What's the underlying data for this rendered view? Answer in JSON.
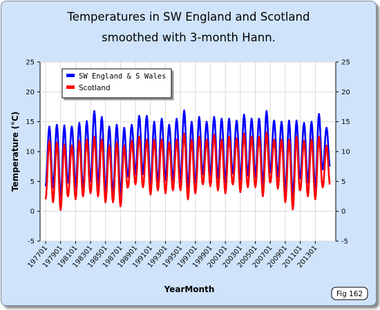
{
  "chart_data": {
    "type": "line",
    "title_lines": [
      "Temperatures in SW England and Scotland",
      "smoothed with 3-month Hann."
    ],
    "xlabel": "YearMonth",
    "ylabel": "Temperature (°C)",
    "ylim": [
      -5,
      25
    ],
    "y_ticks": [
      -5,
      0,
      5,
      10,
      15,
      20,
      25
    ],
    "y_ticks_right": [
      -5,
      0,
      5,
      10,
      15,
      20,
      25
    ],
    "x_tick_labels": [
      "197701",
      "197901",
      "198101",
      "198301",
      "198501",
      "198701",
      "198901",
      "199101",
      "199301",
      "199501",
      "199701",
      "199901",
      "200101",
      "200301",
      "200501",
      "200701",
      "200901",
      "201101",
      "201301"
    ],
    "grid": true,
    "legend_position": "top-left",
    "figure_label": "Fig 162",
    "years": [
      1977,
      1978,
      1979,
      1980,
      1981,
      1982,
      1983,
      1984,
      1985,
      1986,
      1987,
      1988,
      1989,
      1990,
      1991,
      1992,
      1993,
      1994,
      1995,
      1996,
      1997,
      1998,
      1999,
      2000,
      2001,
      2002,
      2003,
      2004,
      2005,
      2006,
      2007,
      2008,
      2009,
      2010,
      2011,
      2012,
      2013,
      2014
    ],
    "series": [
      {
        "name": "SW England & S Wales",
        "color": "#0000ff",
        "annual_min": [
          4.2,
          4.0,
          2.0,
          4.8,
          4.0,
          3.5,
          5.0,
          4.5,
          3.0,
          3.0,
          2.8,
          5.8,
          6.2,
          6.2,
          4.2,
          5.0,
          5.2,
          5.2,
          5.0,
          3.8,
          4.5,
          6.2,
          6.0,
          5.5,
          4.8,
          6.3,
          5.2,
          6.0,
          5.8,
          4.5,
          6.5,
          5.8,
          3.0,
          2.5,
          5.5,
          4.8,
          3.5,
          7.0
        ],
        "annual_max": [
          14.2,
          14.5,
          14.4,
          14.2,
          14.8,
          15.1,
          16.8,
          15.8,
          14.2,
          14.5,
          14.0,
          14.5,
          16.0,
          16.0,
          15.0,
          15.5,
          14.5,
          15.5,
          16.9,
          15.0,
          15.8,
          15.0,
          15.8,
          15.5,
          15.5,
          15.2,
          16.2,
          15.5,
          15.5,
          16.8,
          15.2,
          15.0,
          15.2,
          15.2,
          14.8,
          15.0,
          16.3,
          14.0
        ]
      },
      {
        "name": "Scotland",
        "color": "#ff0000",
        "annual_min": [
          2.0,
          1.5,
          0.2,
          2.5,
          2.0,
          2.5,
          3.0,
          2.5,
          1.5,
          1.5,
          0.8,
          4.0,
          4.5,
          4.0,
          2.8,
          3.5,
          3.0,
          3.5,
          3.5,
          2.0,
          3.0,
          4.5,
          4.2,
          3.5,
          3.0,
          4.5,
          3.2,
          4.0,
          4.0,
          2.5,
          4.8,
          3.8,
          1.5,
          0.3,
          3.5,
          2.5,
          2.0,
          4.0
        ],
        "annual_max": [
          11.8,
          11.5,
          11.2,
          11.0,
          11.8,
          12.0,
          12.5,
          12.0,
          11.0,
          11.5,
          11.0,
          11.8,
          12.5,
          12.0,
          12.0,
          12.0,
          11.5,
          12.0,
          13.0,
          12.0,
          12.5,
          12.0,
          12.8,
          12.0,
          12.5,
          12.2,
          13.0,
          12.5,
          12.5,
          13.2,
          12.0,
          12.0,
          12.0,
          12.5,
          11.8,
          12.0,
          12.5,
          11.0
        ]
      }
    ]
  }
}
